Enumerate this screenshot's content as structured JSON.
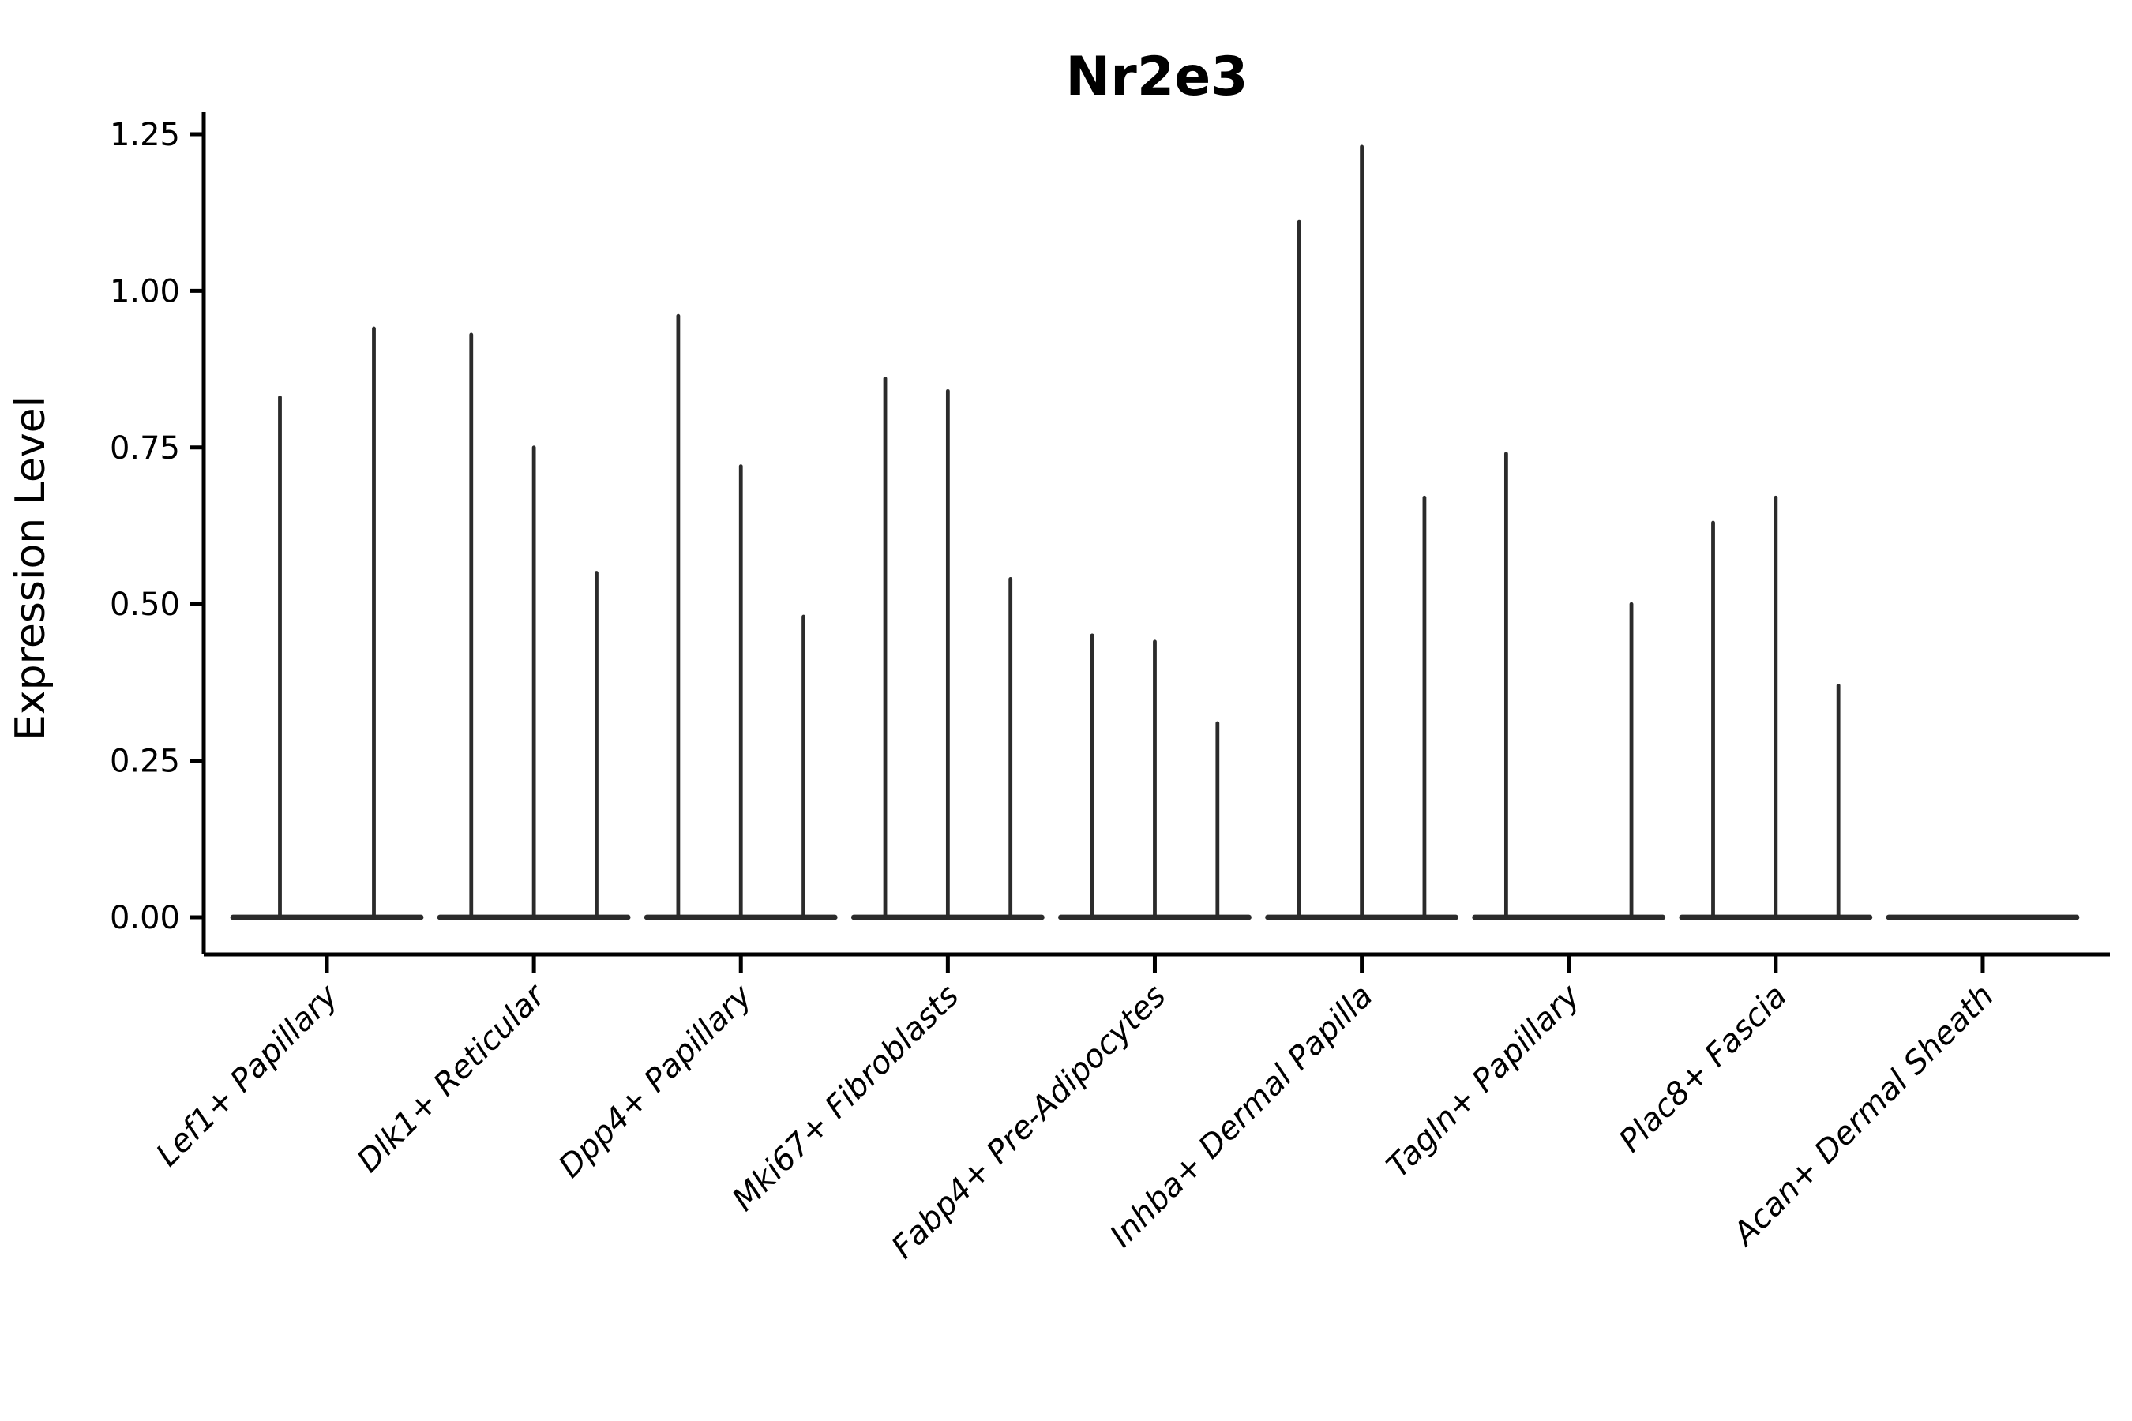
{
  "page": {
    "background": "#ffffff"
  },
  "chart_data": {
    "type": "violin",
    "title": "Nr2e3",
    "ylabel": "Expression Level",
    "xlabel": "",
    "ylim": [
      -0.06,
      1.285
    ],
    "yticks": [
      0,
      0.25,
      0.5,
      0.75,
      1.0,
      1.25
    ],
    "ytick_labels": [
      "0.00",
      "0.25",
      "0.50",
      "0.75",
      "1.00",
      "1.25"
    ],
    "grid": false,
    "legend": false,
    "x_tick_label_rotation_deg": 45,
    "categories": [
      "Lef1+ Papillary",
      "Dlk1+ Reticular",
      "Dpp4+ Papillary",
      "Mki67+ Fibroblasts",
      "Fabp4+ Pre-Adipocytes",
      "Inhba+ Dermal Papilla",
      "Tagln+ Papillary",
      "Plac8+ Fascia",
      "Acan+ Dermal Sheath"
    ],
    "groups": [
      {
        "label": "Lef1+ Papillary",
        "violin_max_values": [
          0.83,
          0.94
        ]
      },
      {
        "label": "Dlk1+ Reticular",
        "violin_max_values": [
          0.93,
          0.75,
          0.55
        ]
      },
      {
        "label": "Dpp4+ Papillary",
        "violin_max_values": [
          0.96,
          0.72,
          0.48
        ]
      },
      {
        "label": "Mki67+ Fibroblasts",
        "violin_max_values": [
          0.86,
          0.84,
          0.54
        ]
      },
      {
        "label": "Fabp4+ Pre-Adipocytes",
        "violin_max_values": [
          0.45,
          0.44,
          0.31
        ]
      },
      {
        "label": "Inhba+ Dermal Papilla",
        "violin_max_values": [
          1.11,
          1.23,
          0.67
        ]
      },
      {
        "label": "Tagln+ Papillary",
        "violin_max_values": [
          0.74,
          0,
          0.5
        ]
      },
      {
        "label": "Plac8+ Fascia",
        "violin_max_values": [
          0.63,
          0.67,
          0.37
        ]
      },
      {
        "label": "Acan+ Dermal Sheath",
        "violin_max_values": [
          0,
          0,
          0
        ]
      }
    ],
    "style": {
      "violin_color": "#2b2b2b",
      "axis_color": "#000000",
      "text_color": "#000000",
      "background": "#ffffff"
    }
  }
}
